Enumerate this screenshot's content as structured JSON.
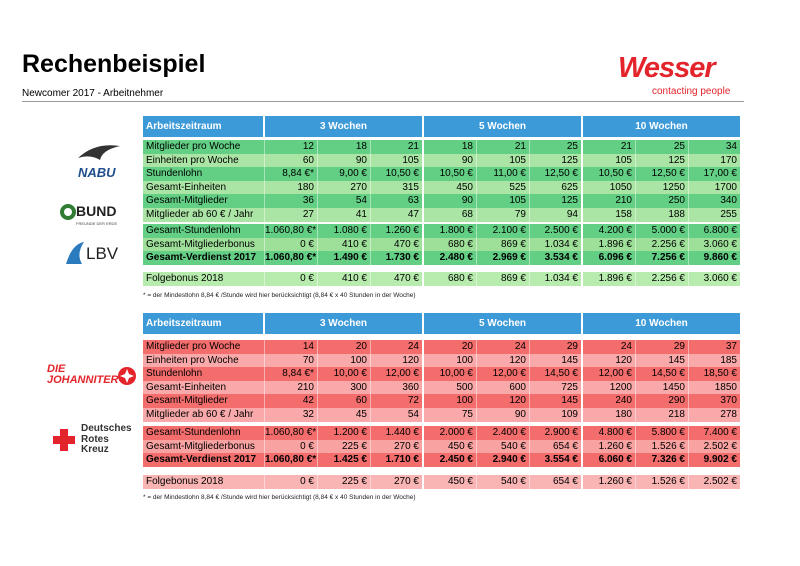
{
  "header": {
    "title": "Rechenbeispiel",
    "subtitle": "Newcomer 2017 - Arbeitnehmer",
    "brand": "Wesser",
    "brand_tagline": "contacting people"
  },
  "tables": [
    {
      "logos": [
        "NABU",
        "BUND",
        "FREUNDE DER ERDE",
        "LBV"
      ],
      "header": [
        "Arbeitszeitraum",
        "3 Wochen",
        "5 Wochen",
        "10 Wochen"
      ],
      "sections": [
        [
          {
            "label": "Mitglieder pro Woche",
            "values": [
              "12",
              "18",
              "21",
              "18",
              "21",
              "25",
              "21",
              "25",
              "34"
            ]
          },
          {
            "label": "Einheiten pro Woche",
            "values": [
              "60",
              "90",
              "105",
              "90",
              "105",
              "125",
              "105",
              "125",
              "170"
            ]
          },
          {
            "label": "Stundenlohn",
            "values": [
              "8,84 €*",
              "9,00 €",
              "10,50 €",
              "10,50 €",
              "11,00 €",
              "12,50 €",
              "10,50 €",
              "12,50 €",
              "17,00 €"
            ]
          },
          {
            "label": "Gesamt-Einheiten",
            "values": [
              "180",
              "270",
              "315",
              "450",
              "525",
              "625",
              "1050",
              "1250",
              "1700"
            ]
          },
          {
            "label": "Gesamt-Mitglieder",
            "values": [
              "36",
              "54",
              "63",
              "90",
              "105",
              "125",
              "210",
              "250",
              "340"
            ]
          },
          {
            "label": "Mitglieder ab 60 € / Jahr",
            "values": [
              "27",
              "41",
              "47",
              "68",
              "79",
              "94",
              "158",
              "188",
              "255"
            ]
          }
        ],
        [
          {
            "label": "Gesamt-Stundenlohn",
            "values": [
              "1.060,80 €*",
              "1.080 €",
              "1.260 €",
              "1.800 €",
              "2.100 €",
              "2.500 €",
              "4.200 €",
              "5.000 €",
              "6.800 €"
            ]
          },
          {
            "label": "Gesamt-Mitgliederbonus",
            "values": [
              "0 €",
              "410 €",
              "470 €",
              "680 €",
              "869 €",
              "1.034 €",
              "1.896 €",
              "2.256 €",
              "3.060 €"
            ]
          },
          {
            "label": "Gesamt-Verdienst 2017",
            "values": [
              "1.060,80 €*",
              "1.490 €",
              "1.730 €",
              "2.480 €",
              "2.969 €",
              "3.534 €",
              "6.096 €",
              "7.256 €",
              "9.860 €"
            ]
          }
        ],
        [
          {
            "label": "Folgebonus 2018",
            "values": [
              "0 €",
              "410 €",
              "470 €",
              "680 €",
              "869 €",
              "1.034 €",
              "1.896 €",
              "2.256 €",
              "3.060 €"
            ]
          }
        ]
      ],
      "footnote": "* = der Mindestlohn 8,84 € /Stunde wird hier berücksichtigt (8,84 € x 40 Stunden in der Woche)"
    },
    {
      "logos": [
        "DIE",
        "JOHANNITER",
        "Deutsches",
        "Rotes",
        "Kreuz"
      ],
      "header": [
        "Arbeitszeitraum",
        "3 Wochen",
        "5 Wochen",
        "10 Wochen"
      ],
      "sections": [
        [
          {
            "label": "Mitglieder pro Woche",
            "values": [
              "14",
              "20",
              "24",
              "20",
              "24",
              "29",
              "24",
              "29",
              "37"
            ]
          },
          {
            "label": "Einheiten pro Woche",
            "values": [
              "70",
              "100",
              "120",
              "100",
              "120",
              "145",
              "120",
              "145",
              "185"
            ]
          },
          {
            "label": "Stundenlohn",
            "values": [
              "8,84 €*",
              "10,00 €",
              "12,00 €",
              "10,00 €",
              "12,00 €",
              "14,50 €",
              "12,00 €",
              "14,50 €",
              "18,50 €"
            ]
          },
          {
            "label": "Gesamt-Einheiten",
            "values": [
              "210",
              "300",
              "360",
              "500",
              "600",
              "725",
              "1200",
              "1450",
              "1850"
            ]
          },
          {
            "label": "Gesamt-Mitglieder",
            "values": [
              "42",
              "60",
              "72",
              "100",
              "120",
              "145",
              "240",
              "290",
              "370"
            ]
          },
          {
            "label": "Mitglieder ab 60 € / Jahr",
            "values": [
              "32",
              "45",
              "54",
              "75",
              "90",
              "109",
              "180",
              "218",
              "278"
            ]
          }
        ],
        [
          {
            "label": "Gesamt-Stundenlohn",
            "values": [
              "1.060,80 €*",
              "1.200 €",
              "1.440 €",
              "2.000 €",
              "2.400 €",
              "2.900 €",
              "4.800 €",
              "5.800 €",
              "7.400 €"
            ]
          },
          {
            "label": "Gesamt-Mitgliederbonus",
            "values": [
              "0 €",
              "225 €",
              "270 €",
              "450 €",
              "540 €",
              "654 €",
              "1.260 €",
              "1.526 €",
              "2.502 €"
            ]
          },
          {
            "label": "Gesamt-Verdienst 2017",
            "values": [
              "1.060,80 €*",
              "1.425 €",
              "1.710 €",
              "2.450 €",
              "2.940 €",
              "3.554 €",
              "6.060 €",
              "7.326 €",
              "9.902 €"
            ]
          }
        ],
        [
          {
            "label": "Folgebonus 2018",
            "values": [
              "0 €",
              "225 €",
              "270 €",
              "450 €",
              "540 €",
              "654 €",
              "1.260 €",
              "1.526 €",
              "2.502 €"
            ]
          }
        ]
      ],
      "footnote": "* = der Mindestlohn 8,84 € /Stunde wird hier berücksichtigt (8,84 € x 40 Stunden in der Woche)"
    }
  ]
}
